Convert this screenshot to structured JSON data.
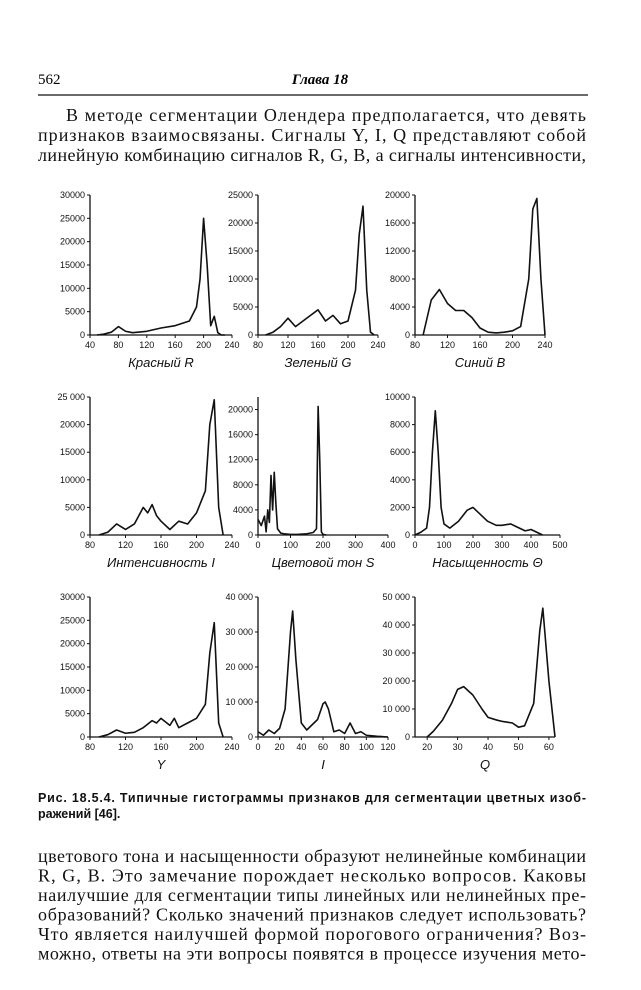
{
  "header": {
    "page_number": "562",
    "title": "Глава 18"
  },
  "top_text": [
    "В методе сегментации Олендера предполагается, что девять",
    "признаков взаимосвязаны. Сигналы Y, I, Q представляют собой",
    "линейную комбинацию сигналов R, G, B, а сигналы интенсивности,"
  ],
  "chart_data": [
    {
      "type": "line",
      "x_label": "Красный R",
      "color": "#111111",
      "xlim": [
        40,
        240
      ],
      "ylim": [
        0,
        30000
      ],
      "xticks": [
        40,
        80,
        120,
        160,
        200,
        240
      ],
      "yticks": [
        0,
        5000,
        10000,
        15000,
        20000,
        25000,
        30000
      ],
      "x": [
        50,
        60,
        70,
        80,
        90,
        100,
        120,
        140,
        160,
        180,
        190,
        195,
        200,
        205,
        210,
        215,
        220,
        225,
        230
      ],
      "values": [
        0,
        200,
        600,
        1800,
        800,
        500,
        800,
        1500,
        2000,
        3000,
        6000,
        12000,
        25000,
        15000,
        2000,
        4000,
        500,
        0,
        0
      ]
    },
    {
      "type": "line",
      "x_label": "Зеленый G",
      "color": "#111111",
      "xlim": [
        80,
        240
      ],
      "ylim": [
        0,
        25000
      ],
      "xticks": [
        80,
        120,
        160,
        200,
        240
      ],
      "yticks": [
        0,
        5000,
        10000,
        15000,
        20000,
        25000
      ],
      "x": [
        90,
        100,
        110,
        120,
        130,
        140,
        150,
        160,
        170,
        180,
        190,
        200,
        210,
        215,
        220,
        225,
        230,
        235
      ],
      "values": [
        0,
        500,
        1500,
        3000,
        1500,
        2500,
        3500,
        4500,
        2500,
        3500,
        2000,
        2500,
        8000,
        18000,
        23000,
        8000,
        500,
        0
      ]
    },
    {
      "type": "line",
      "x_label": "Синий B",
      "color": "#111111",
      "xlim": [
        80,
        240
      ],
      "ylim": [
        0,
        20000
      ],
      "xticks": [
        80,
        120,
        160,
        200,
        240
      ],
      "yticks": [
        0,
        4000,
        8000,
        12000,
        16000,
        20000
      ],
      "x": [
        90,
        100,
        110,
        120,
        130,
        140,
        150,
        160,
        170,
        180,
        190,
        200,
        210,
        220,
        225,
        230,
        235,
        240
      ],
      "values": [
        0,
        5000,
        6500,
        4500,
        3500,
        3500,
        2500,
        1000,
        400,
        300,
        400,
        600,
        1200,
        8000,
        18000,
        19500,
        8000,
        0
      ]
    },
    {
      "type": "line",
      "x_label": "Интенсивность I",
      "color": "#111111",
      "xlim": [
        80,
        240
      ],
      "ylim": [
        0,
        25000
      ],
      "xticks": [
        80,
        120,
        160,
        200,
        240
      ],
      "yticks": [
        0,
        5000,
        10000,
        15000,
        20000,
        {
          "value": 25000,
          "label": "25 000"
        }
      ],
      "x": [
        90,
        100,
        110,
        120,
        130,
        140,
        145,
        150,
        155,
        160,
        170,
        180,
        190,
        200,
        210,
        215,
        220,
        225,
        230
      ],
      "values": [
        0,
        500,
        2000,
        1000,
        2000,
        5000,
        4000,
        5500,
        3500,
        2500,
        1000,
        2500,
        2000,
        4000,
        8000,
        20000,
        24500,
        5000,
        0
      ]
    },
    {
      "type": "line",
      "x_label": "Цветовой тон S",
      "color": "#111111",
      "xlim": [
        0,
        400
      ],
      "ylim": [
        0,
        22000
      ],
      "xticks": [
        0,
        100,
        200,
        300,
        400
      ],
      "yticks": [
        0,
        4000,
        8000,
        12000,
        16000,
        20000
      ],
      "x": [
        0,
        10,
        20,
        25,
        30,
        35,
        40,
        45,
        50,
        55,
        60,
        70,
        80,
        100,
        120,
        150,
        170,
        180,
        185,
        190,
        195,
        200,
        210
      ],
      "values": [
        2500,
        1500,
        3000,
        500,
        4000,
        2000,
        9500,
        4000,
        10000,
        5000,
        1000,
        300,
        200,
        100,
        100,
        200,
        400,
        1000,
        20500,
        12000,
        500,
        100,
        0
      ]
    },
    {
      "type": "line",
      "x_label": "Насыщенность Θ",
      "color": "#111111",
      "xlim": [
        0,
        500
      ],
      "ylim": [
        0,
        10000
      ],
      "xticks": [
        0,
        100,
        200,
        300,
        400,
        500
      ],
      "yticks": [
        0,
        2000,
        4000,
        6000,
        8000,
        10000
      ],
      "x": [
        0,
        20,
        40,
        50,
        60,
        70,
        80,
        90,
        100,
        120,
        150,
        180,
        200,
        220,
        250,
        280,
        300,
        330,
        350,
        380,
        400,
        420,
        440
      ],
      "values": [
        0,
        200,
        500,
        2000,
        6000,
        9000,
        6000,
        2000,
        800,
        500,
        1000,
        1800,
        2000,
        1600,
        1000,
        700,
        700,
        800,
        600,
        300,
        400,
        200,
        0
      ]
    },
    {
      "type": "line",
      "x_label": "Y",
      "color": "#111111",
      "xlim": [
        80,
        240
      ],
      "ylim": [
        0,
        30000
      ],
      "xticks": [
        80,
        120,
        160,
        200,
        240
      ],
      "yticks": [
        0,
        5000,
        10000,
        15000,
        20000,
        25000,
        30000
      ],
      "x": [
        90,
        100,
        110,
        120,
        130,
        140,
        150,
        155,
        160,
        170,
        175,
        180,
        190,
        200,
        210,
        215,
        220,
        225,
        230
      ],
      "values": [
        0,
        500,
        1500,
        800,
        1000,
        2000,
        3500,
        3000,
        4000,
        2500,
        4000,
        2000,
        3000,
        4000,
        7000,
        18000,
        24500,
        3000,
        0
      ]
    },
    {
      "type": "line",
      "x_label": "I",
      "color": "#111111",
      "xlim": [
        0,
        120
      ],
      "ylim": [
        0,
        40000
      ],
      "xticks": [
        0,
        20,
        40,
        60,
        80,
        100,
        120
      ],
      "yticks": [
        0,
        {
          "value": 10000,
          "label": "10 000"
        },
        {
          "value": 20000,
          "label": "20 000"
        },
        {
          "value": 30000,
          "label": "30 000"
        },
        {
          "value": 40000,
          "label": "40 000"
        }
      ],
      "x": [
        0,
        5,
        10,
        15,
        20,
        25,
        30,
        32,
        35,
        40,
        45,
        50,
        55,
        60,
        62,
        65,
        70,
        75,
        80,
        85,
        90,
        95,
        100,
        110,
        120
      ],
      "values": [
        1500,
        500,
        2000,
        1000,
        2500,
        8000,
        30000,
        36000,
        22000,
        4000,
        2000,
        3500,
        5000,
        9500,
        10000,
        8000,
        1500,
        2000,
        1000,
        4000,
        1000,
        1500,
        500,
        200,
        0
      ]
    },
    {
      "type": "line",
      "x_label": "Q",
      "color": "#111111",
      "xlim": [
        16,
        62
      ],
      "ylim": [
        0,
        50000
      ],
      "xticks": [
        20,
        30,
        40,
        50,
        60
      ],
      "yticks": [
        0,
        {
          "value": 10000,
          "label": "10 000"
        },
        {
          "value": 20000,
          "label": "20 000"
        },
        {
          "value": 30000,
          "label": "30 000"
        },
        {
          "value": 40000,
          "label": "40 000"
        },
        {
          "value": 50000,
          "label": "50 000"
        }
      ],
      "x": [
        20,
        22,
        25,
        28,
        30,
        32,
        35,
        38,
        40,
        43,
        45,
        48,
        50,
        52,
        55,
        57,
        58,
        60,
        62
      ],
      "values": [
        0,
        2000,
        6000,
        12000,
        17000,
        18000,
        15000,
        10000,
        7000,
        6000,
        5500,
        5000,
        3500,
        4000,
        12000,
        38000,
        46000,
        20000,
        0
      ]
    }
  ],
  "caption": [
    "Рис. 18.5.4. Типичные гистограммы признаков для сегментации цветных изоб-",
    "ражений [46]."
  ],
  "bottom_text": [
    "цветового тона и насыщенности образуют нелинейные комбинации",
    "R, G, B. Это замечание порождает несколько вопросов. Каковы",
    "наилучшие для сегментации типы линейных или нелинейных пре-",
    "образований? Сколько значений признаков следует использовать?",
    "Что является наилучшей формой порогового ограничения? Воз-",
    "можно, ответы на эти вопросы появятся в процессе изучения мето-"
  ]
}
